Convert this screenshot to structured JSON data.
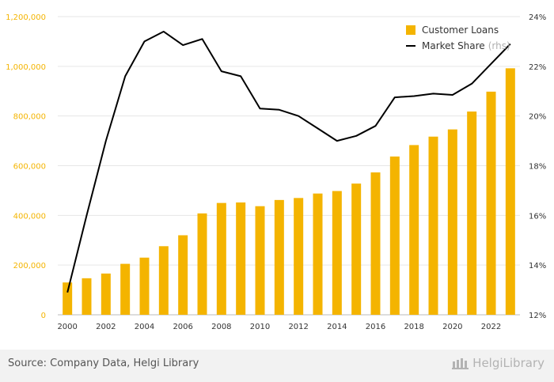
{
  "chart_data": {
    "type": "bar",
    "categories": [
      "2000",
      "2001",
      "2002",
      "2003",
      "2004",
      "2005",
      "2006",
      "2007",
      "2008",
      "2009",
      "2010",
      "2011",
      "2012",
      "2013",
      "2014",
      "2015",
      "2016",
      "2017",
      "2018",
      "2019",
      "2020",
      "2021",
      "2022",
      "2023"
    ],
    "x_tick_labels": [
      "2000",
      "2002",
      "2004",
      "2006",
      "2008",
      "2010",
      "2012",
      "2014",
      "2016",
      "2018",
      "2020",
      "2022"
    ],
    "series": [
      {
        "name": "Customer Loans",
        "type": "bar",
        "axis": "left",
        "color": "#f4b400",
        "values": [
          130000,
          147000,
          166000,
          205000,
          230000,
          276000,
          320000,
          408000,
          450000,
          452000,
          437000,
          462000,
          470000,
          488000,
          498000,
          528000,
          573000,
          637000,
          683000,
          717000,
          746000,
          818000,
          898000,
          992000
        ]
      },
      {
        "name": "Market Share",
        "axis_note": "(rhs)",
        "type": "line",
        "axis": "right",
        "color": "#000000",
        "values": [
          12.9,
          16.0,
          19.0,
          21.6,
          23.0,
          23.4,
          22.85,
          23.1,
          21.8,
          21.6,
          20.3,
          20.25,
          20.0,
          19.5,
          19.0,
          19.2,
          19.6,
          20.75,
          20.8,
          20.9,
          20.85,
          21.3,
          22.1,
          22.9
        ]
      }
    ],
    "y_left": {
      "min": 0,
      "max": 1200000,
      "ticks": [
        0,
        200000,
        400000,
        600000,
        800000,
        1000000,
        1200000
      ],
      "tick_labels": [
        "0",
        "200,000",
        "400,000",
        "600,000",
        "800,000",
        "1,000,000",
        "1,200,000"
      ],
      "color": "#f4b400"
    },
    "y_right": {
      "min": 12,
      "max": 24,
      "ticks": [
        12,
        14,
        16,
        18,
        20,
        22,
        24
      ],
      "tick_labels": [
        "12%",
        "14%",
        "16%",
        "18%",
        "20%",
        "22%",
        "24%"
      ],
      "color": "#333333"
    },
    "grid": true,
    "legend_position": "top-right"
  },
  "legend": {
    "bar_label": "Customer Loans",
    "line_label": "Market Share",
    "line_suffix": "(rhs)"
  },
  "footer": {
    "source": "Source: Company Data, Helgi Library",
    "brand": "HelgiLibrary"
  }
}
